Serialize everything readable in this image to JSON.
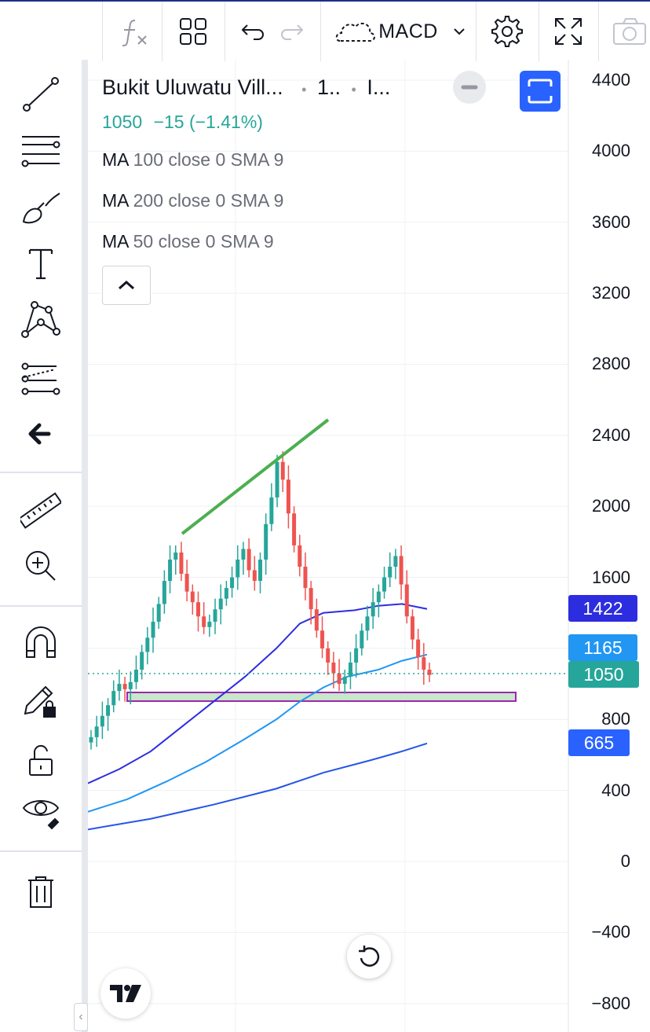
{
  "toolbar": {
    "indicator_name": "MACD",
    "icons": [
      "function-icon",
      "layout-grid-icon",
      "undo-icon",
      "redo-icon",
      "cloud-icon",
      "chevron-down-icon",
      "settings-icon",
      "fullscreen-icon",
      "camera-icon"
    ]
  },
  "sidebar": {
    "tools": [
      "dot-icon",
      "trendline-icon",
      "fib-lines-icon",
      "brush-icon",
      "text-icon",
      "pattern-icon",
      "prediction-icon",
      "back-arrow-icon",
      "ruler-icon",
      "zoom-in-icon",
      "magnet-icon",
      "pencil-lock-icon",
      "lock-icon",
      "eye-icon",
      "trash-icon"
    ]
  },
  "legend": {
    "symbol": "Bukit Uluwatu Vill...",
    "interval": "1..",
    "exchange": "I...",
    "last_price": "1050",
    "change": "−15",
    "change_pct": "(−1.41%)",
    "ma_lines": [
      {
        "label": "MA",
        "params": "100 close 0 SMA 9"
      },
      {
        "label": "MA",
        "params": "200 close 0 SMA 9"
      },
      {
        "label": "MA",
        "params": "50 close 0 SMA 9"
      }
    ]
  },
  "price_axis": {
    "ticks": [
      "4400",
      "4000",
      "3600",
      "3200",
      "2800",
      "2400",
      "2000",
      "1600",
      "800",
      "400",
      "0",
      "−400",
      "−800"
    ],
    "tags": [
      {
        "value": "1422",
        "color": "#2d2de0"
      },
      {
        "value": "1165",
        "color": "#2196f3"
      },
      {
        "value": "1050",
        "color": "#26a69a"
      },
      {
        "value": "665",
        "color": "#2962ff"
      }
    ]
  },
  "chart_data": {
    "type": "candlestick",
    "ylim": [
      -900,
      4500
    ],
    "last_price": 1050,
    "trendline": {
      "from": 1860,
      "to": 2490
    },
    "support_zone": [
      925,
      980
    ],
    "ma_values_last": {
      "ma_50": 1165,
      "ma_100": 1422,
      "ma_200": 665
    },
    "candles_close": [
      700,
      760,
      820,
      880,
      960,
      1000,
      970,
      1010,
      1080,
      1180,
      1260,
      1350,
      1450,
      1580,
      1700,
      1740,
      1620,
      1520,
      1460,
      1380,
      1320,
      1350,
      1420,
      1480,
      1540,
      1600,
      1700,
      1760,
      1640,
      1580,
      1700,
      1900,
      2050,
      2250,
      2150,
      1960,
      1780,
      1660,
      1540,
      1420,
      1300,
      1200,
      1120,
      1060,
      1000,
      1040,
      1120,
      1200,
      1300,
      1380,
      1460,
      1520,
      1600,
      1660,
      1720,
      1560,
      1380,
      1250,
      1150,
      1080,
      1050
    ]
  }
}
